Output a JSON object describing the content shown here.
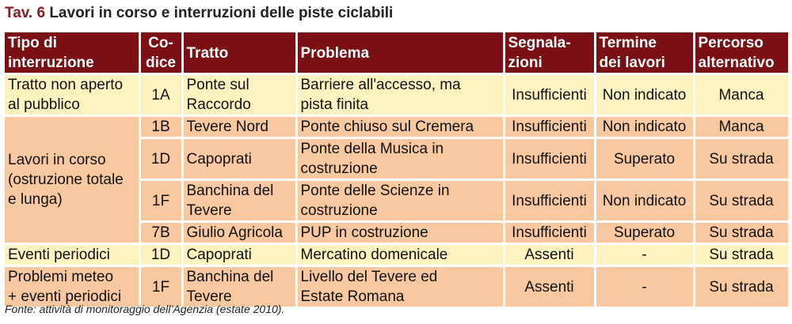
{
  "title": {
    "prefix": "Tav. 6",
    "text": "Lavori in corso e interruzioni delle piste ciclabili"
  },
  "table": {
    "headers": {
      "tipo": [
        "Tipo di",
        "interruzione"
      ],
      "codice": [
        "Co-",
        "dice"
      ],
      "tratto": "Tratto",
      "problema": "Problema",
      "segnalazioni": [
        "Segnala-",
        "zioni"
      ],
      "termine": [
        "Termine",
        "dei lavori"
      ],
      "percorso": [
        "Percorso",
        "alternativo"
      ]
    },
    "groups": [
      {
        "tipo": [
          "Tratto non aperto",
          "al pubblico"
        ]
      },
      {
        "tipo": [
          "Lavori in corso",
          "(ostruzione totale",
          "e lunga)"
        ]
      },
      {
        "tipo": [
          "Eventi periodici"
        ]
      },
      {
        "tipo": [
          "Problemi meteo",
          "+ eventi periodici"
        ]
      }
    ],
    "rows": [
      {
        "codice": "1A",
        "tratto": [
          "Ponte sul",
          "Raccordo"
        ],
        "problema": [
          "Barriere all'accesso, ma",
          "pista finita"
        ],
        "segnalazioni": "Insufficienti",
        "termine": "Non indicato",
        "percorso": "Manca"
      },
      {
        "codice": "1B",
        "tratto": [
          "Tevere Nord"
        ],
        "problema": [
          "Ponte chiuso sul Cremera"
        ],
        "segnalazioni": "Insufficienti",
        "termine": "Non indicato",
        "percorso": "Manca"
      },
      {
        "codice": "1D",
        "tratto": [
          "Capoprati"
        ],
        "problema": [
          "Ponte della Musica in",
          "costruzione"
        ],
        "segnalazioni": "Insufficienti",
        "termine": "Superato",
        "percorso": "Su strada"
      },
      {
        "codice": "1F",
        "tratto": [
          "Banchina del",
          "Tevere"
        ],
        "problema": [
          "Ponte delle Scienze in",
          "costruzione"
        ],
        "segnalazioni": "Insufficienti",
        "termine": "Non indicato",
        "percorso": "Su strada"
      },
      {
        "codice": "7B",
        "tratto": [
          "Giulio Agricola"
        ],
        "problema": [
          "PUP in costruzione"
        ],
        "segnalazioni": "Insufficienti",
        "termine": "Superato",
        "percorso": "Su strada"
      },
      {
        "codice": "1D",
        "tratto": [
          "Capoprati"
        ],
        "problema": [
          "Mercatino domenicale"
        ],
        "segnalazioni": "Assenti",
        "termine": "-",
        "percorso": "Su strada"
      },
      {
        "codice": "1F",
        "tratto": [
          "Banchina del",
          "Tevere"
        ],
        "problema": [
          "Livello del Tevere ed",
          "Estate Romana"
        ],
        "segnalazioni": "Assenti",
        "termine": "-",
        "percorso": "Su strada"
      }
    ]
  },
  "source": "Fonte: attività di monitoraggio dell’Agenzia (estate 2010).",
  "colors": {
    "header_bg": "#7a0f14",
    "row_yellow": "#fdf3c1",
    "row_peach": "#f8c9a0",
    "title_accent": "#8b1a1a"
  }
}
